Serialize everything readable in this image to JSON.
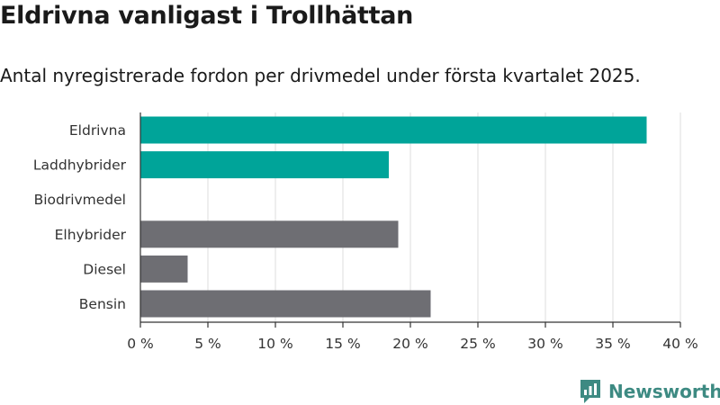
{
  "brand": {
    "name": "Newsworthy"
  },
  "colors": {
    "highlight": "#00a499",
    "default": "#6e6e73",
    "grid": "#dddddd",
    "axis": "#333333",
    "brand": "#3d8a82"
  },
  "chart_data": {
    "type": "bar",
    "orientation": "horizontal",
    "title": "Eldrivna vanligast i Trollhättan",
    "subtitle": "Antal nyregistrerade fordon per drivmedel under första kvartalet 2025.",
    "categories": [
      "Eldrivna",
      "Laddhybrider",
      "Biodrivmedel",
      "Elhybrider",
      "Diesel",
      "Bensin"
    ],
    "values": [
      37.5,
      18.4,
      0,
      19.1,
      3.5,
      21.5
    ],
    "highlighted": [
      true,
      true,
      false,
      false,
      false,
      false
    ],
    "xlim": [
      0,
      40
    ],
    "xticks": [
      0,
      5,
      10,
      15,
      20,
      25,
      30,
      35,
      40
    ],
    "xtick_labels": [
      "0 %",
      "5 %",
      "10 %",
      "15 %",
      "20 %",
      "25 %",
      "30 %",
      "35 %",
      "40 %"
    ],
    "grid": true,
    "legend": "none"
  }
}
